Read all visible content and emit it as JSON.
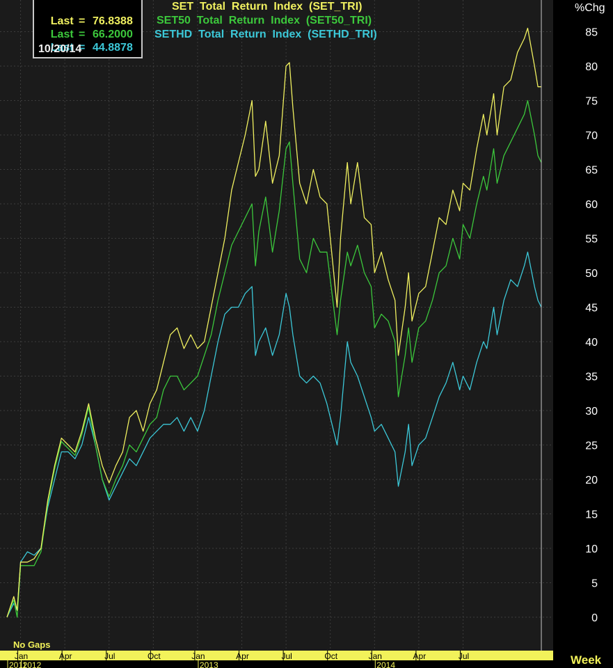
{
  "header": {
    "last_label": "Last",
    "equals": "=",
    "last_values": [
      "76.8388",
      "66.2000",
      "44.8878"
    ],
    "date": "10/20/14",
    "legend": [
      "SET  Total  Return  Index  (SET_TRI)",
      "SET50  Total  Return  Index  (SET50_TRI)",
      "SETHD  Total  Return  Index  (SETHD_TRI)"
    ]
  },
  "colors": {
    "background": "#1b1b1b",
    "grid": "#3c3c3c",
    "axis_text": "#ffffff",
    "month_text": "#000000",
    "month_band": "#f2f25a",
    "set": "#f0f060",
    "set50": "#3cc83c",
    "sethd": "#3cc8d8"
  },
  "chart_data": {
    "type": "line",
    "ylabel": "%Chg",
    "xlabel": "Week",
    "ylim": [
      -3,
      89
    ],
    "yticks": [
      0,
      5,
      10,
      15,
      20,
      25,
      30,
      35,
      40,
      45,
      50,
      55,
      60,
      65,
      70,
      75,
      80,
      85
    ],
    "grid": true,
    "footer_text": "No  Gaps",
    "month_ticks": [
      {
        "label": "Jan",
        "week": 4
      },
      {
        "label": "Apr",
        "week": 17
      },
      {
        "label": "Jul",
        "week": 30
      },
      {
        "label": "Oct",
        "week": 43
      },
      {
        "label": "Jan",
        "week": 56
      },
      {
        "label": "Apr",
        "week": 69
      },
      {
        "label": "Jul",
        "week": 82
      },
      {
        "label": "Oct",
        "week": 95
      },
      {
        "label": "Jan",
        "week": 108
      },
      {
        "label": "Apr",
        "week": 121
      },
      {
        "label": "Jul",
        "week": 134
      }
    ],
    "year_ticks": [
      {
        "label": "2011",
        "week": 0
      },
      {
        "label": "2012",
        "week": 4
      },
      {
        "label": "2013",
        "week": 56
      },
      {
        "label": "2014",
        "week": 108
      }
    ],
    "x_max": 148,
    "series": [
      {
        "name": "SET Total Return Index (SET_TRI)",
        "key": "set",
        "points": [
          [
            0,
            0
          ],
          [
            2,
            3
          ],
          [
            3,
            1
          ],
          [
            4,
            8
          ],
          [
            6,
            8
          ],
          [
            8,
            8.5
          ],
          [
            10,
            10
          ],
          [
            12,
            17
          ],
          [
            14,
            22
          ],
          [
            16,
            26
          ],
          [
            18,
            25
          ],
          [
            20,
            24
          ],
          [
            22,
            27
          ],
          [
            24,
            31
          ],
          [
            26,
            26
          ],
          [
            28,
            22
          ],
          [
            30,
            19.5
          ],
          [
            32,
            22
          ],
          [
            34,
            24
          ],
          [
            36,
            29
          ],
          [
            38,
            30
          ],
          [
            40,
            27
          ],
          [
            42,
            31
          ],
          [
            44,
            33
          ],
          [
            46,
            37
          ],
          [
            48,
            41
          ],
          [
            50,
            42
          ],
          [
            52,
            39
          ],
          [
            54,
            41
          ],
          [
            56,
            39
          ],
          [
            58,
            40
          ],
          [
            60,
            45
          ],
          [
            62,
            50
          ],
          [
            64,
            55
          ],
          [
            66,
            62
          ],
          [
            68,
            66
          ],
          [
            70,
            70
          ],
          [
            72,
            75
          ],
          [
            73,
            64
          ],
          [
            74,
            65
          ],
          [
            76,
            72
          ],
          [
            78,
            63
          ],
          [
            80,
            67
          ],
          [
            82,
            80
          ],
          [
            83,
            80.5
          ],
          [
            84,
            74
          ],
          [
            86,
            63
          ],
          [
            88,
            60
          ],
          [
            90,
            65
          ],
          [
            92,
            61
          ],
          [
            94,
            60
          ],
          [
            96,
            50
          ],
          [
            97,
            45
          ],
          [
            98,
            55
          ],
          [
            100,
            66
          ],
          [
            101,
            60
          ],
          [
            103,
            66
          ],
          [
            105,
            58
          ],
          [
            107,
            57
          ],
          [
            108,
            50
          ],
          [
            110,
            53
          ],
          [
            112,
            49
          ],
          [
            114,
            46
          ],
          [
            115,
            38
          ],
          [
            117,
            45
          ],
          [
            118,
            50
          ],
          [
            119,
            43
          ],
          [
            121,
            47
          ],
          [
            123,
            48
          ],
          [
            125,
            53
          ],
          [
            127,
            58
          ],
          [
            129,
            57
          ],
          [
            131,
            62
          ],
          [
            133,
            59
          ],
          [
            134,
            63
          ],
          [
            136,
            62
          ],
          [
            138,
            68
          ],
          [
            140,
            73
          ],
          [
            141,
            70
          ],
          [
            143,
            76
          ],
          [
            144,
            70
          ],
          [
            146,
            77
          ],
          [
            148,
            78
          ],
          [
            150,
            82
          ],
          [
            152,
            84
          ],
          [
            153,
            85.5
          ],
          [
            155,
            80
          ],
          [
            156,
            77
          ],
          [
            157,
            77
          ]
        ]
      },
      {
        "name": "SET50 Total Return Index (SET50_TRI)",
        "key": "set50",
        "points": [
          [
            0,
            0
          ],
          [
            2,
            2.5
          ],
          [
            3,
            0
          ],
          [
            4,
            7.5
          ],
          [
            6,
            7.5
          ],
          [
            8,
            7.5
          ],
          [
            10,
            9.5
          ],
          [
            12,
            16.5
          ],
          [
            14,
            21.5
          ],
          [
            16,
            25.5
          ],
          [
            18,
            24.5
          ],
          [
            20,
            23.5
          ],
          [
            22,
            26.5
          ],
          [
            24,
            30.5
          ],
          [
            26,
            25
          ],
          [
            28,
            20
          ],
          [
            30,
            17.5
          ],
          [
            32,
            20
          ],
          [
            34,
            22
          ],
          [
            36,
            25
          ],
          [
            38,
            24
          ],
          [
            40,
            26
          ],
          [
            42,
            28
          ],
          [
            44,
            29
          ],
          [
            46,
            33
          ],
          [
            48,
            35
          ],
          [
            50,
            35
          ],
          [
            52,
            33
          ],
          [
            54,
            34
          ],
          [
            56,
            35
          ],
          [
            58,
            38
          ],
          [
            60,
            41
          ],
          [
            62,
            46
          ],
          [
            64,
            50
          ],
          [
            66,
            54
          ],
          [
            68,
            56
          ],
          [
            70,
            58
          ],
          [
            72,
            60
          ],
          [
            73,
            51
          ],
          [
            74,
            56
          ],
          [
            76,
            61
          ],
          [
            78,
            53
          ],
          [
            80,
            59
          ],
          [
            82,
            68
          ],
          [
            83,
            69
          ],
          [
            84,
            63
          ],
          [
            86,
            52
          ],
          [
            88,
            50
          ],
          [
            90,
            55
          ],
          [
            92,
            53
          ],
          [
            94,
            53
          ],
          [
            96,
            45
          ],
          [
            97,
            41
          ],
          [
            98,
            46
          ],
          [
            100,
            53
          ],
          [
            101,
            51
          ],
          [
            103,
            54
          ],
          [
            105,
            50
          ],
          [
            107,
            48
          ],
          [
            108,
            42
          ],
          [
            110,
            44
          ],
          [
            112,
            43
          ],
          [
            114,
            40
          ],
          [
            115,
            32
          ],
          [
            117,
            38
          ],
          [
            118,
            42
          ],
          [
            119,
            37
          ],
          [
            121,
            42
          ],
          [
            123,
            43
          ],
          [
            125,
            46
          ],
          [
            127,
            50
          ],
          [
            129,
            51
          ],
          [
            131,
            55
          ],
          [
            133,
            52
          ],
          [
            134,
            57
          ],
          [
            136,
            55
          ],
          [
            138,
            60
          ],
          [
            140,
            64
          ],
          [
            141,
            62
          ],
          [
            143,
            68
          ],
          [
            144,
            63
          ],
          [
            146,
            67
          ],
          [
            148,
            69
          ],
          [
            150,
            71
          ],
          [
            152,
            73
          ],
          [
            153,
            75
          ],
          [
            155,
            70
          ],
          [
            156,
            67
          ],
          [
            157,
            66
          ]
        ]
      },
      {
        "name": "SETHD Total Return Index (SETHD_TRI)",
        "key": "sethd",
        "points": [
          [
            0,
            0
          ],
          [
            2,
            2
          ],
          [
            3,
            1
          ],
          [
            4,
            8
          ],
          [
            6,
            9.5
          ],
          [
            8,
            9
          ],
          [
            10,
            10
          ],
          [
            12,
            16
          ],
          [
            14,
            20
          ],
          [
            16,
            24
          ],
          [
            18,
            24
          ],
          [
            20,
            23
          ],
          [
            22,
            25
          ],
          [
            24,
            29
          ],
          [
            26,
            25
          ],
          [
            28,
            20
          ],
          [
            30,
            17
          ],
          [
            32,
            19
          ],
          [
            34,
            21
          ],
          [
            36,
            23
          ],
          [
            38,
            22
          ],
          [
            40,
            24
          ],
          [
            42,
            26
          ],
          [
            44,
            27
          ],
          [
            46,
            28
          ],
          [
            48,
            28
          ],
          [
            50,
            29
          ],
          [
            52,
            27
          ],
          [
            54,
            29
          ],
          [
            56,
            27
          ],
          [
            58,
            30
          ],
          [
            60,
            35
          ],
          [
            62,
            40
          ],
          [
            64,
            44
          ],
          [
            66,
            45
          ],
          [
            68,
            45
          ],
          [
            70,
            47
          ],
          [
            72,
            48
          ],
          [
            73,
            38
          ],
          [
            74,
            40
          ],
          [
            76,
            42
          ],
          [
            78,
            38
          ],
          [
            80,
            41
          ],
          [
            82,
            47
          ],
          [
            83,
            45
          ],
          [
            84,
            41
          ],
          [
            86,
            35
          ],
          [
            88,
            34
          ],
          [
            90,
            35
          ],
          [
            92,
            34
          ],
          [
            94,
            31
          ],
          [
            96,
            27
          ],
          [
            97,
            25
          ],
          [
            98,
            29
          ],
          [
            100,
            40
          ],
          [
            101,
            37
          ],
          [
            103,
            35
          ],
          [
            105,
            32
          ],
          [
            107,
            29
          ],
          [
            108,
            27
          ],
          [
            110,
            28
          ],
          [
            112,
            26
          ],
          [
            114,
            24
          ],
          [
            115,
            19
          ],
          [
            117,
            24
          ],
          [
            118,
            28
          ],
          [
            119,
            22
          ],
          [
            121,
            25
          ],
          [
            123,
            26
          ],
          [
            125,
            29
          ],
          [
            127,
            32
          ],
          [
            129,
            34
          ],
          [
            131,
            37
          ],
          [
            133,
            33
          ],
          [
            134,
            35
          ],
          [
            136,
            33
          ],
          [
            138,
            37
          ],
          [
            140,
            40
          ],
          [
            141,
            39
          ],
          [
            143,
            45
          ],
          [
            144,
            41
          ],
          [
            146,
            46
          ],
          [
            148,
            49
          ],
          [
            150,
            48
          ],
          [
            152,
            51
          ],
          [
            153,
            53
          ],
          [
            155,
            48
          ],
          [
            156,
            46
          ],
          [
            157,
            45
          ]
        ]
      }
    ]
  }
}
